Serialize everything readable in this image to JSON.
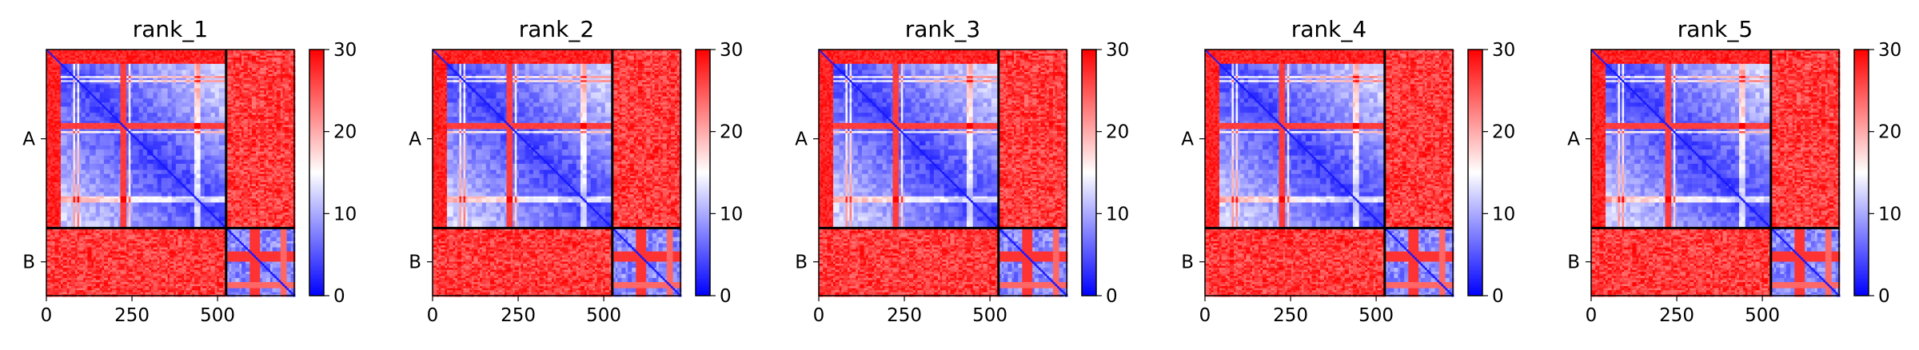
{
  "chart_data": {
    "type": "heatmap",
    "colormap": {
      "low": "#0000ff",
      "mid": "#ffffff",
      "high": "#ff0000",
      "vmin": 0,
      "vmax": 30
    },
    "matrix_size": 724,
    "chain_boundary": 525,
    "chains": [
      {
        "label": "A",
        "start": 0,
        "end": 525
      },
      {
        "label": "B",
        "start": 525,
        "end": 724
      }
    ],
    "x_ticks": [
      0,
      250,
      500
    ],
    "colorbar_ticks": [
      0,
      10,
      20,
      30
    ],
    "panels": [
      {
        "title": "rank_1"
      },
      {
        "title": "rank_2"
      },
      {
        "title": "rank_3"
      },
      {
        "title": "rank_4"
      },
      {
        "title": "rank_5"
      }
    ]
  }
}
